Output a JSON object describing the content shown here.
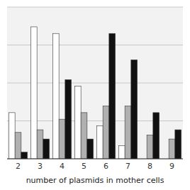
{
  "chart_data": {
    "type": "bar",
    "categories": [
      "2",
      "3",
      "4",
      "5",
      "6",
      "7",
      "8",
      "9"
    ],
    "series": [
      {
        "color": "#ffffff",
        "values": [
          3.5,
          10.0,
          9.5,
          5.5,
          2.5,
          1.0,
          0.0,
          0.0
        ]
      },
      {
        "color": "#b0b0b0",
        "values": [
          2.0,
          2.2,
          3.0,
          3.5,
          4.0,
          4.0,
          1.8,
          1.5
        ]
      },
      {
        "color": "#111111",
        "values": [
          0.5,
          1.5,
          6.0,
          1.5,
          9.5,
          7.5,
          3.5,
          2.2
        ]
      }
    ],
    "xlabel": "number of plasmids in mother cells",
    "ylim": [
      0,
      11.5
    ],
    "yticks": [
      0,
      2.875,
      5.75,
      8.625,
      11.5
    ],
    "grid": true,
    "tick_labels": "x"
  }
}
